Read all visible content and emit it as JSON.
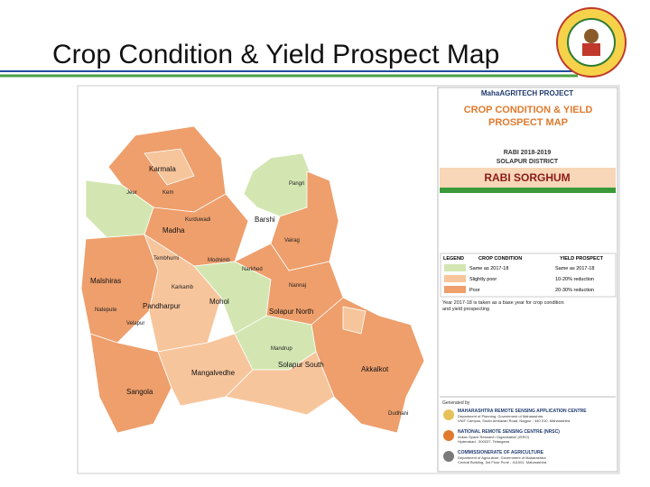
{
  "header": {
    "title": "Crop Condition & Yield Prospect Map"
  },
  "map": {
    "labels": [
      "Karmala",
      "Madha",
      "Barshi",
      "Malshiras",
      "Pandharpur",
      "Mohol",
      "Solapur North",
      "Solapur South",
      "Mangalvedhe",
      "Sangola",
      "Akkalkot",
      "Jeur",
      "Kem",
      "Kurduwadi",
      "Tembhurni",
      "Modnimb",
      "Narkhed",
      "Vairag",
      "Pangri",
      "Nannaj",
      "Mandrup",
      "Natepute",
      "Velapur",
      "Karkamb",
      "Dudhani"
    ]
  },
  "panel": {
    "project": "MahaAGRITECH PROJECT",
    "title": "CROP CONDITION & YIELD PROSPECT MAP",
    "season": "RABI 2018-2019",
    "district": "SOLAPUR DISTRICT",
    "crop": "RABI SORGHUM",
    "legend": {
      "header": [
        "LEGEND",
        "CROP CONDITION",
        "YIELD PROSPECT"
      ],
      "rows": [
        [
          "Same as 2017-18",
          "Same as 2017-18"
        ],
        [
          "Slightly poor",
          "10-20% reduction"
        ],
        [
          "Poor",
          "20-30% reduction"
        ]
      ]
    },
    "note": "Year 2017-18 is taken as a base year for crop condition and yield prospecting",
    "generated_by": "Generated by",
    "orgs": [
      {
        "name": "MAHARASHTRA REMOTE SENSING APPLICATION CENTRE",
        "line1": "Department of Planning, Government of Maharashtra",
        "line2": "VNIT Campus, South Ambazari Road, Nagpur - 440 010, Maharashtra"
      },
      {
        "name": "NATIONAL REMOTE SENSING CENTRE (NRSC)",
        "line1": "Indian Space Research Organisation (ISRO)",
        "line2": "Hyderabad - 500037, Telangana"
      },
      {
        "name": "COMMISSIONERATE OF AGRICULTURE",
        "line1": "Department of Agriculture, Government of Maharashtra",
        "line2": "Central Building, 3rd Floor Pune - 411001, Maharashtra"
      }
    ]
  }
}
